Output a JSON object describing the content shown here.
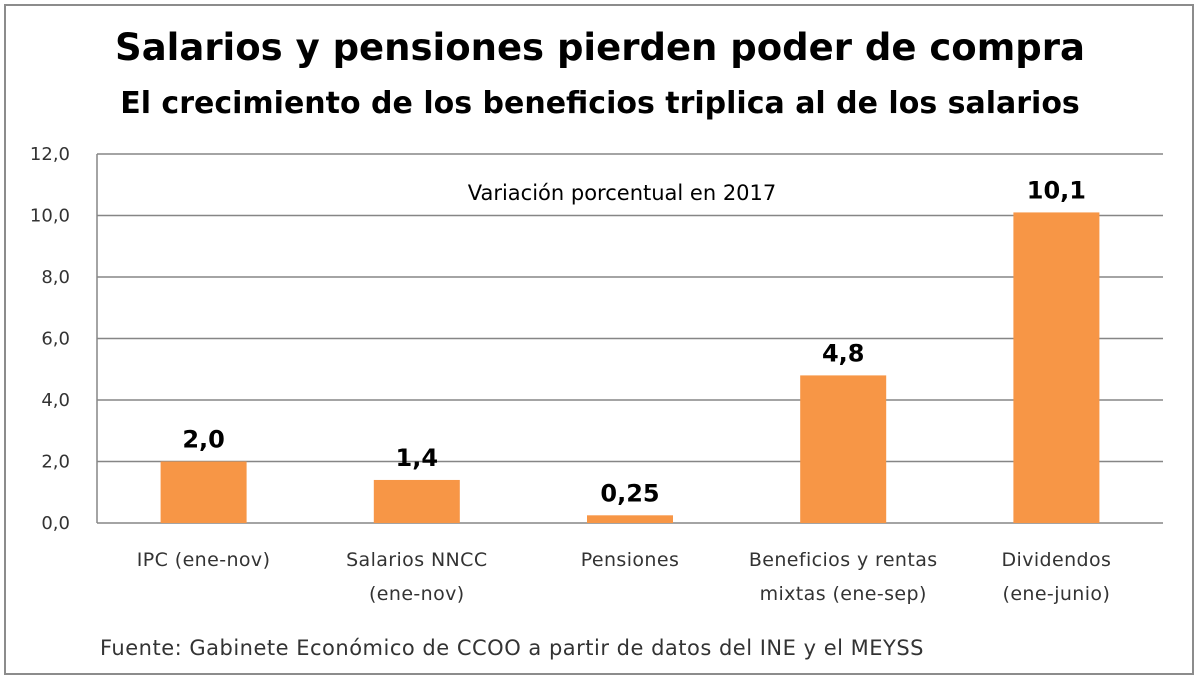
{
  "chart_data": {
    "type": "bar",
    "title": "Salarios y pensiones pierden poder de compra",
    "subtitle": "El crecimiento de los beneficios triplica al de los salarios",
    "annotation": "Variación porcentual en 2017",
    "source": "Fuente: Gabinete Económico de CCOO a partir de datos del INE y el MEYSS",
    "categories": [
      [
        "IPC (ene-nov)"
      ],
      [
        "Salarios NNCC",
        "(ene-nov)"
      ],
      [
        "Pensiones"
      ],
      [
        "Beneficios y rentas",
        "mixtas (ene-sep)"
      ],
      [
        "Dividendos",
        "(ene-junio)"
      ]
    ],
    "values": [
      2.0,
      1.4,
      0.25,
      4.8,
      10.1
    ],
    "value_labels": [
      "2,0",
      "1,4",
      "0,25",
      "4,8",
      "10,1"
    ],
    "ylim": [
      0,
      12
    ],
    "yticks": [
      0,
      2,
      4,
      6,
      8,
      10,
      12
    ],
    "ytick_labels": [
      "0,0",
      "2,0",
      "4,0",
      "6,0",
      "8,0",
      "10,0",
      "12,0"
    ],
    "grid": true,
    "legend": "none",
    "bar_color": "#F79646",
    "grid_color": "#868686"
  }
}
